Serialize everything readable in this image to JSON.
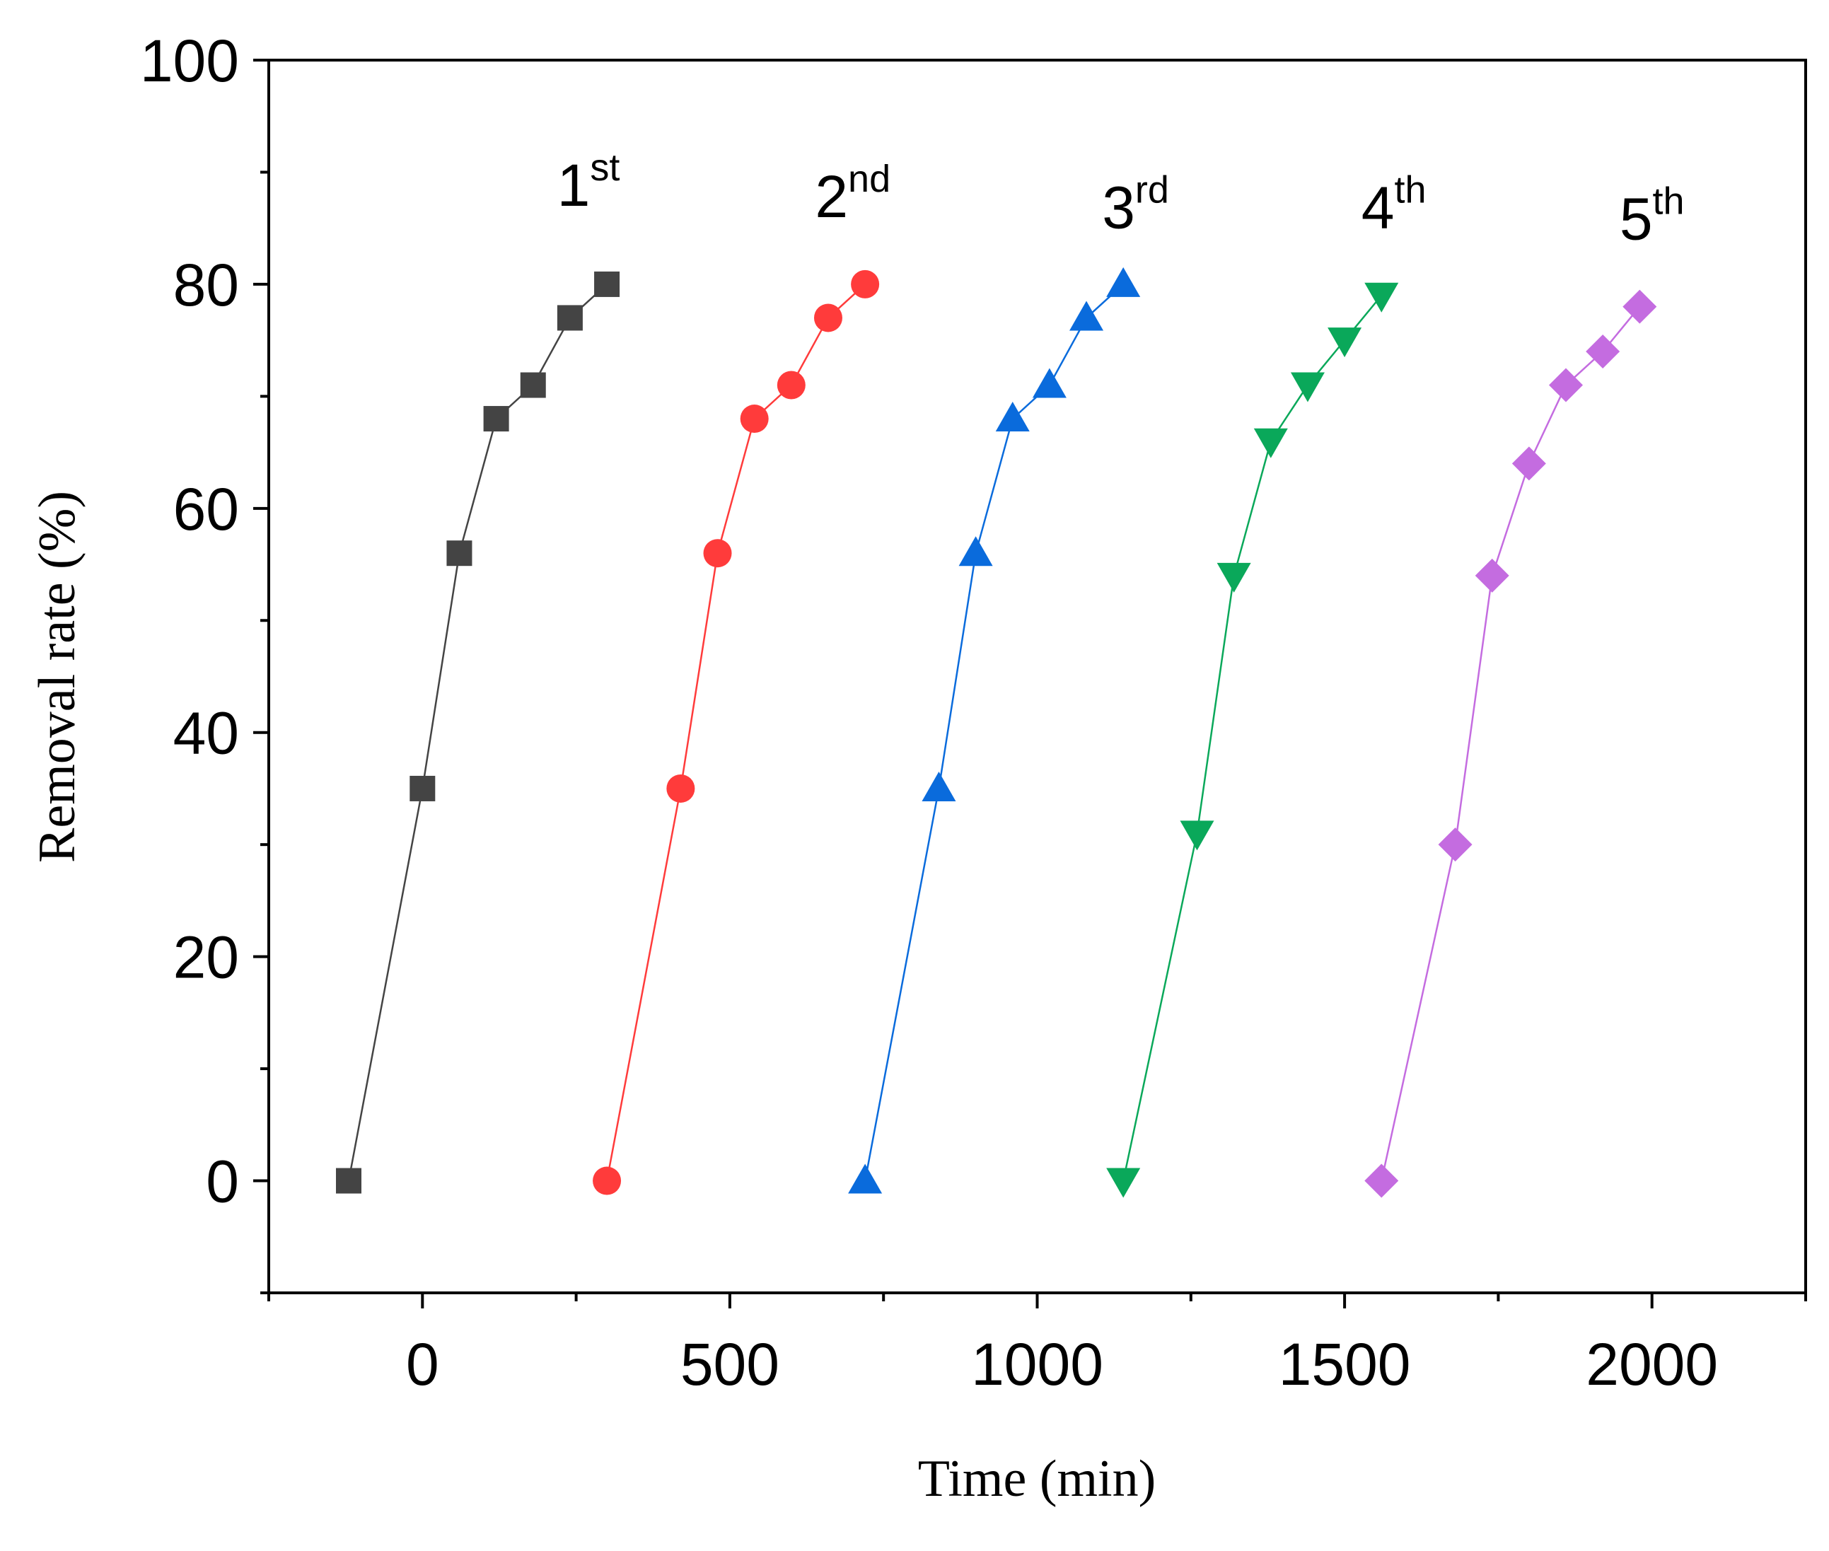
{
  "chart_data": {
    "type": "line",
    "title": "",
    "xlabel": "Time (min)",
    "ylabel": "Removal rate (%)",
    "xlim": [
      -250,
      2250
    ],
    "ylim": [
      -10,
      100
    ],
    "xticks": [
      0,
      500,
      1000,
      1500,
      2000
    ],
    "xtick_labels": [
      "0",
      "500",
      "1000",
      "1500",
      "2000"
    ],
    "yticks": [
      0,
      20,
      40,
      60,
      80,
      100
    ],
    "ytick_labels": [
      "0",
      "20",
      "40",
      "60",
      "80",
      "100"
    ],
    "grid": false,
    "series": [
      {
        "name": "1st",
        "label": {
          "base": "1",
          "sup": "st",
          "x": 270,
          "y": 87
        },
        "color": "#444444",
        "marker": "square",
        "x": [
          -120,
          0,
          60,
          120,
          180,
          240,
          300
        ],
        "y": [
          0,
          35,
          56,
          68,
          71,
          77,
          80
        ]
      },
      {
        "name": "2nd",
        "label": {
          "base": "2",
          "sup": "nd",
          "x": 700,
          "y": 86
        },
        "color": "#ff3b3b",
        "marker": "circle",
        "x": [
          300,
          420,
          480,
          540,
          600,
          660,
          720
        ],
        "y": [
          0,
          35,
          56,
          68,
          71,
          77,
          80
        ]
      },
      {
        "name": "3rd",
        "label": {
          "base": "3",
          "sup": "rd",
          "x": 1160,
          "y": 85
        },
        "color": "#0a6bdc",
        "marker": "triangle-up",
        "x": [
          720,
          840,
          900,
          960,
          1020,
          1080,
          1140
        ],
        "y": [
          0,
          35,
          56,
          68,
          71,
          77,
          80
        ]
      },
      {
        "name": "4th",
        "label": {
          "base": "4",
          "sup": "th",
          "x": 1580,
          "y": 85
        },
        "color": "#0aa85a",
        "marker": "triangle-down",
        "x": [
          1140,
          1260,
          1320,
          1380,
          1440,
          1500,
          1560
        ],
        "y": [
          0,
          31,
          54,
          66,
          71,
          75,
          79
        ]
      },
      {
        "name": "5th",
        "label": {
          "base": "5",
          "sup": "th",
          "x": 2000,
          "y": 84
        },
        "color": "#c46ce0",
        "marker": "diamond",
        "x": [
          1560,
          1680,
          1740,
          1800,
          1860,
          1920,
          1980
        ],
        "y": [
          0,
          30,
          54,
          64,
          71,
          74,
          78
        ]
      }
    ]
  }
}
